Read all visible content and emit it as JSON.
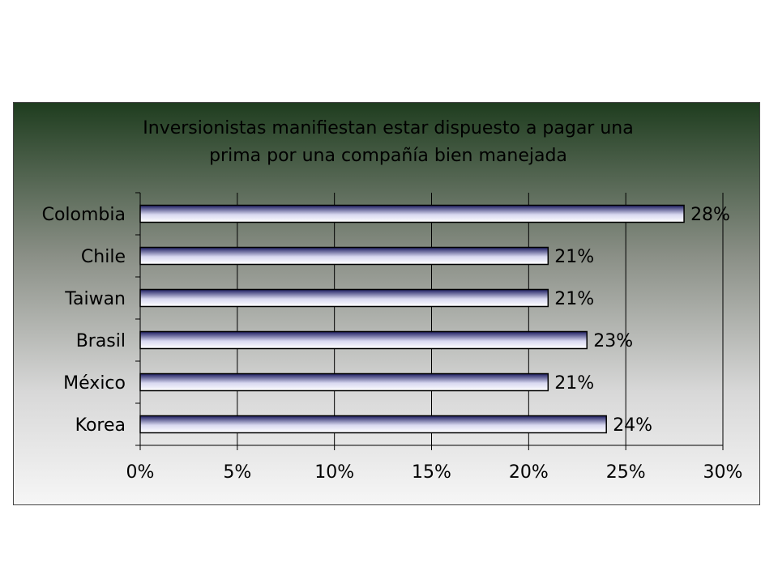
{
  "chart_data": {
    "type": "bar",
    "orientation": "horizontal",
    "title": [
      "Inversionistas manifiestan estar dispuesto a pagar una",
      "prima por una compañía bien manejada"
    ],
    "categories": [
      "Colombia",
      "Chile",
      "Taiwan",
      "Brasil",
      "México",
      "Korea"
    ],
    "values": [
      28,
      21,
      21,
      23,
      21,
      24
    ],
    "data_labels": [
      "28%",
      "21%",
      "21%",
      "23%",
      "21%",
      "24%"
    ],
    "xlim": [
      0,
      30
    ],
    "x_ticks": [
      0,
      5,
      10,
      15,
      20,
      25,
      30
    ],
    "x_tick_labels": [
      "0%",
      "5%",
      "10%",
      "15%",
      "20%",
      "25%",
      "30%"
    ],
    "grid": "vertical",
    "legend": "none",
    "bar_color_dark": "#1a1a5e",
    "bar_color_light": "#ffffff"
  }
}
